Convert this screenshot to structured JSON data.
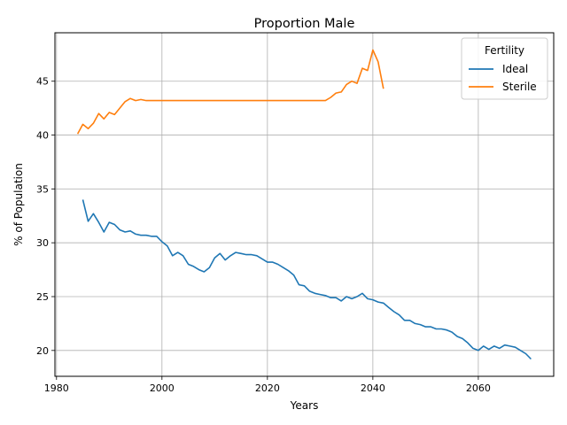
{
  "chart_data": {
    "type": "line",
    "title": "Proportion Male",
    "xlabel": "Years",
    "ylabel": "% of Population",
    "xlim": [
      1979.7,
      2074.3
    ],
    "ylim": [
      17.6,
      49.5
    ],
    "xticks": [
      1980,
      2000,
      2020,
      2040,
      2060
    ],
    "yticks": [
      20,
      25,
      30,
      35,
      40,
      45
    ],
    "grid": true,
    "legend": {
      "title": "Fertility",
      "placement": "top-right"
    },
    "series": [
      {
        "name": "Ideal",
        "color": "#1f77b4",
        "x": [
          1985,
          1986,
          1987,
          1988,
          1989,
          1990,
          1991,
          1992,
          1993,
          1994,
          1995,
          1996,
          1997,
          1998,
          1999,
          2000,
          2001,
          2002,
          2003,
          2004,
          2005,
          2006,
          2007,
          2008,
          2009,
          2010,
          2011,
          2012,
          2013,
          2014,
          2015,
          2016,
          2017,
          2018,
          2019,
          2020,
          2021,
          2022,
          2023,
          2024,
          2025,
          2026,
          2027,
          2028,
          2029,
          2030,
          2031,
          2032,
          2033,
          2034,
          2035,
          2036,
          2037,
          2038,
          2039,
          2040,
          2041,
          2042,
          2043,
          2044,
          2045,
          2046,
          2047,
          2048,
          2049,
          2050,
          2051,
          2052,
          2053,
          2054,
          2055,
          2056,
          2057,
          2058,
          2059,
          2060,
          2061,
          2062,
          2063,
          2064,
          2065,
          2066,
          2067,
          2068,
          2069,
          2070
        ],
        "y": [
          34.0,
          32.0,
          32.7,
          31.9,
          31.0,
          31.9,
          31.7,
          31.2,
          31.0,
          31.1,
          30.8,
          30.7,
          30.7,
          30.6,
          30.6,
          30.1,
          29.7,
          28.8,
          29.1,
          28.8,
          28.0,
          27.8,
          27.5,
          27.3,
          27.7,
          28.6,
          29.0,
          28.4,
          28.8,
          29.1,
          29.0,
          28.9,
          28.9,
          28.8,
          28.5,
          28.2,
          28.2,
          28.0,
          27.7,
          27.4,
          27.0,
          26.1,
          26.0,
          25.5,
          25.3,
          25.2,
          25.1,
          24.9,
          24.9,
          24.6,
          25.0,
          24.8,
          25.0,
          25.3,
          24.8,
          24.7,
          24.5,
          24.4,
          24.0,
          23.6,
          23.3,
          22.8,
          22.8,
          22.5,
          22.4,
          22.2,
          22.2,
          22.0,
          22.0,
          21.9,
          21.7,
          21.3,
          21.1,
          20.7,
          20.2,
          20.0,
          20.4,
          20.1,
          20.4,
          20.2,
          20.5,
          20.4,
          20.3,
          20.0,
          19.7,
          19.2
        ]
      },
      {
        "name": "Sterile",
        "color": "#ff7f0e",
        "x": [
          1984,
          1985,
          1986,
          1987,
          1988,
          1989,
          1990,
          1991,
          1992,
          1993,
          1994,
          1995,
          1996,
          1997,
          1998,
          1999,
          2000,
          2001,
          2002,
          2003,
          2004,
          2005,
          2006,
          2007,
          2008,
          2009,
          2010,
          2011,
          2012,
          2013,
          2014,
          2015,
          2016,
          2017,
          2018,
          2019,
          2020,
          2021,
          2022,
          2023,
          2024,
          2025,
          2026,
          2027,
          2028,
          2029,
          2030,
          2031,
          2032,
          2033,
          2034,
          2035,
          2036,
          2037,
          2038,
          2039,
          2040,
          2041,
          2042
        ],
        "y": [
          40.1,
          41.0,
          40.6,
          41.1,
          42.0,
          41.5,
          42.1,
          41.9,
          42.5,
          43.1,
          43.4,
          43.2,
          43.3,
          43.2,
          43.2,
          43.2,
          43.2,
          43.2,
          43.2,
          43.2,
          43.2,
          43.2,
          43.2,
          43.2,
          43.2,
          43.2,
          43.2,
          43.2,
          43.2,
          43.2,
          43.2,
          43.2,
          43.2,
          43.2,
          43.2,
          43.2,
          43.2,
          43.2,
          43.2,
          43.2,
          43.2,
          43.2,
          43.2,
          43.2,
          43.2,
          43.2,
          43.2,
          43.2,
          43.5,
          43.9,
          44.0,
          44.7,
          45.0,
          44.8,
          46.2,
          46.0,
          47.9,
          46.8,
          44.3
        ]
      }
    ]
  }
}
